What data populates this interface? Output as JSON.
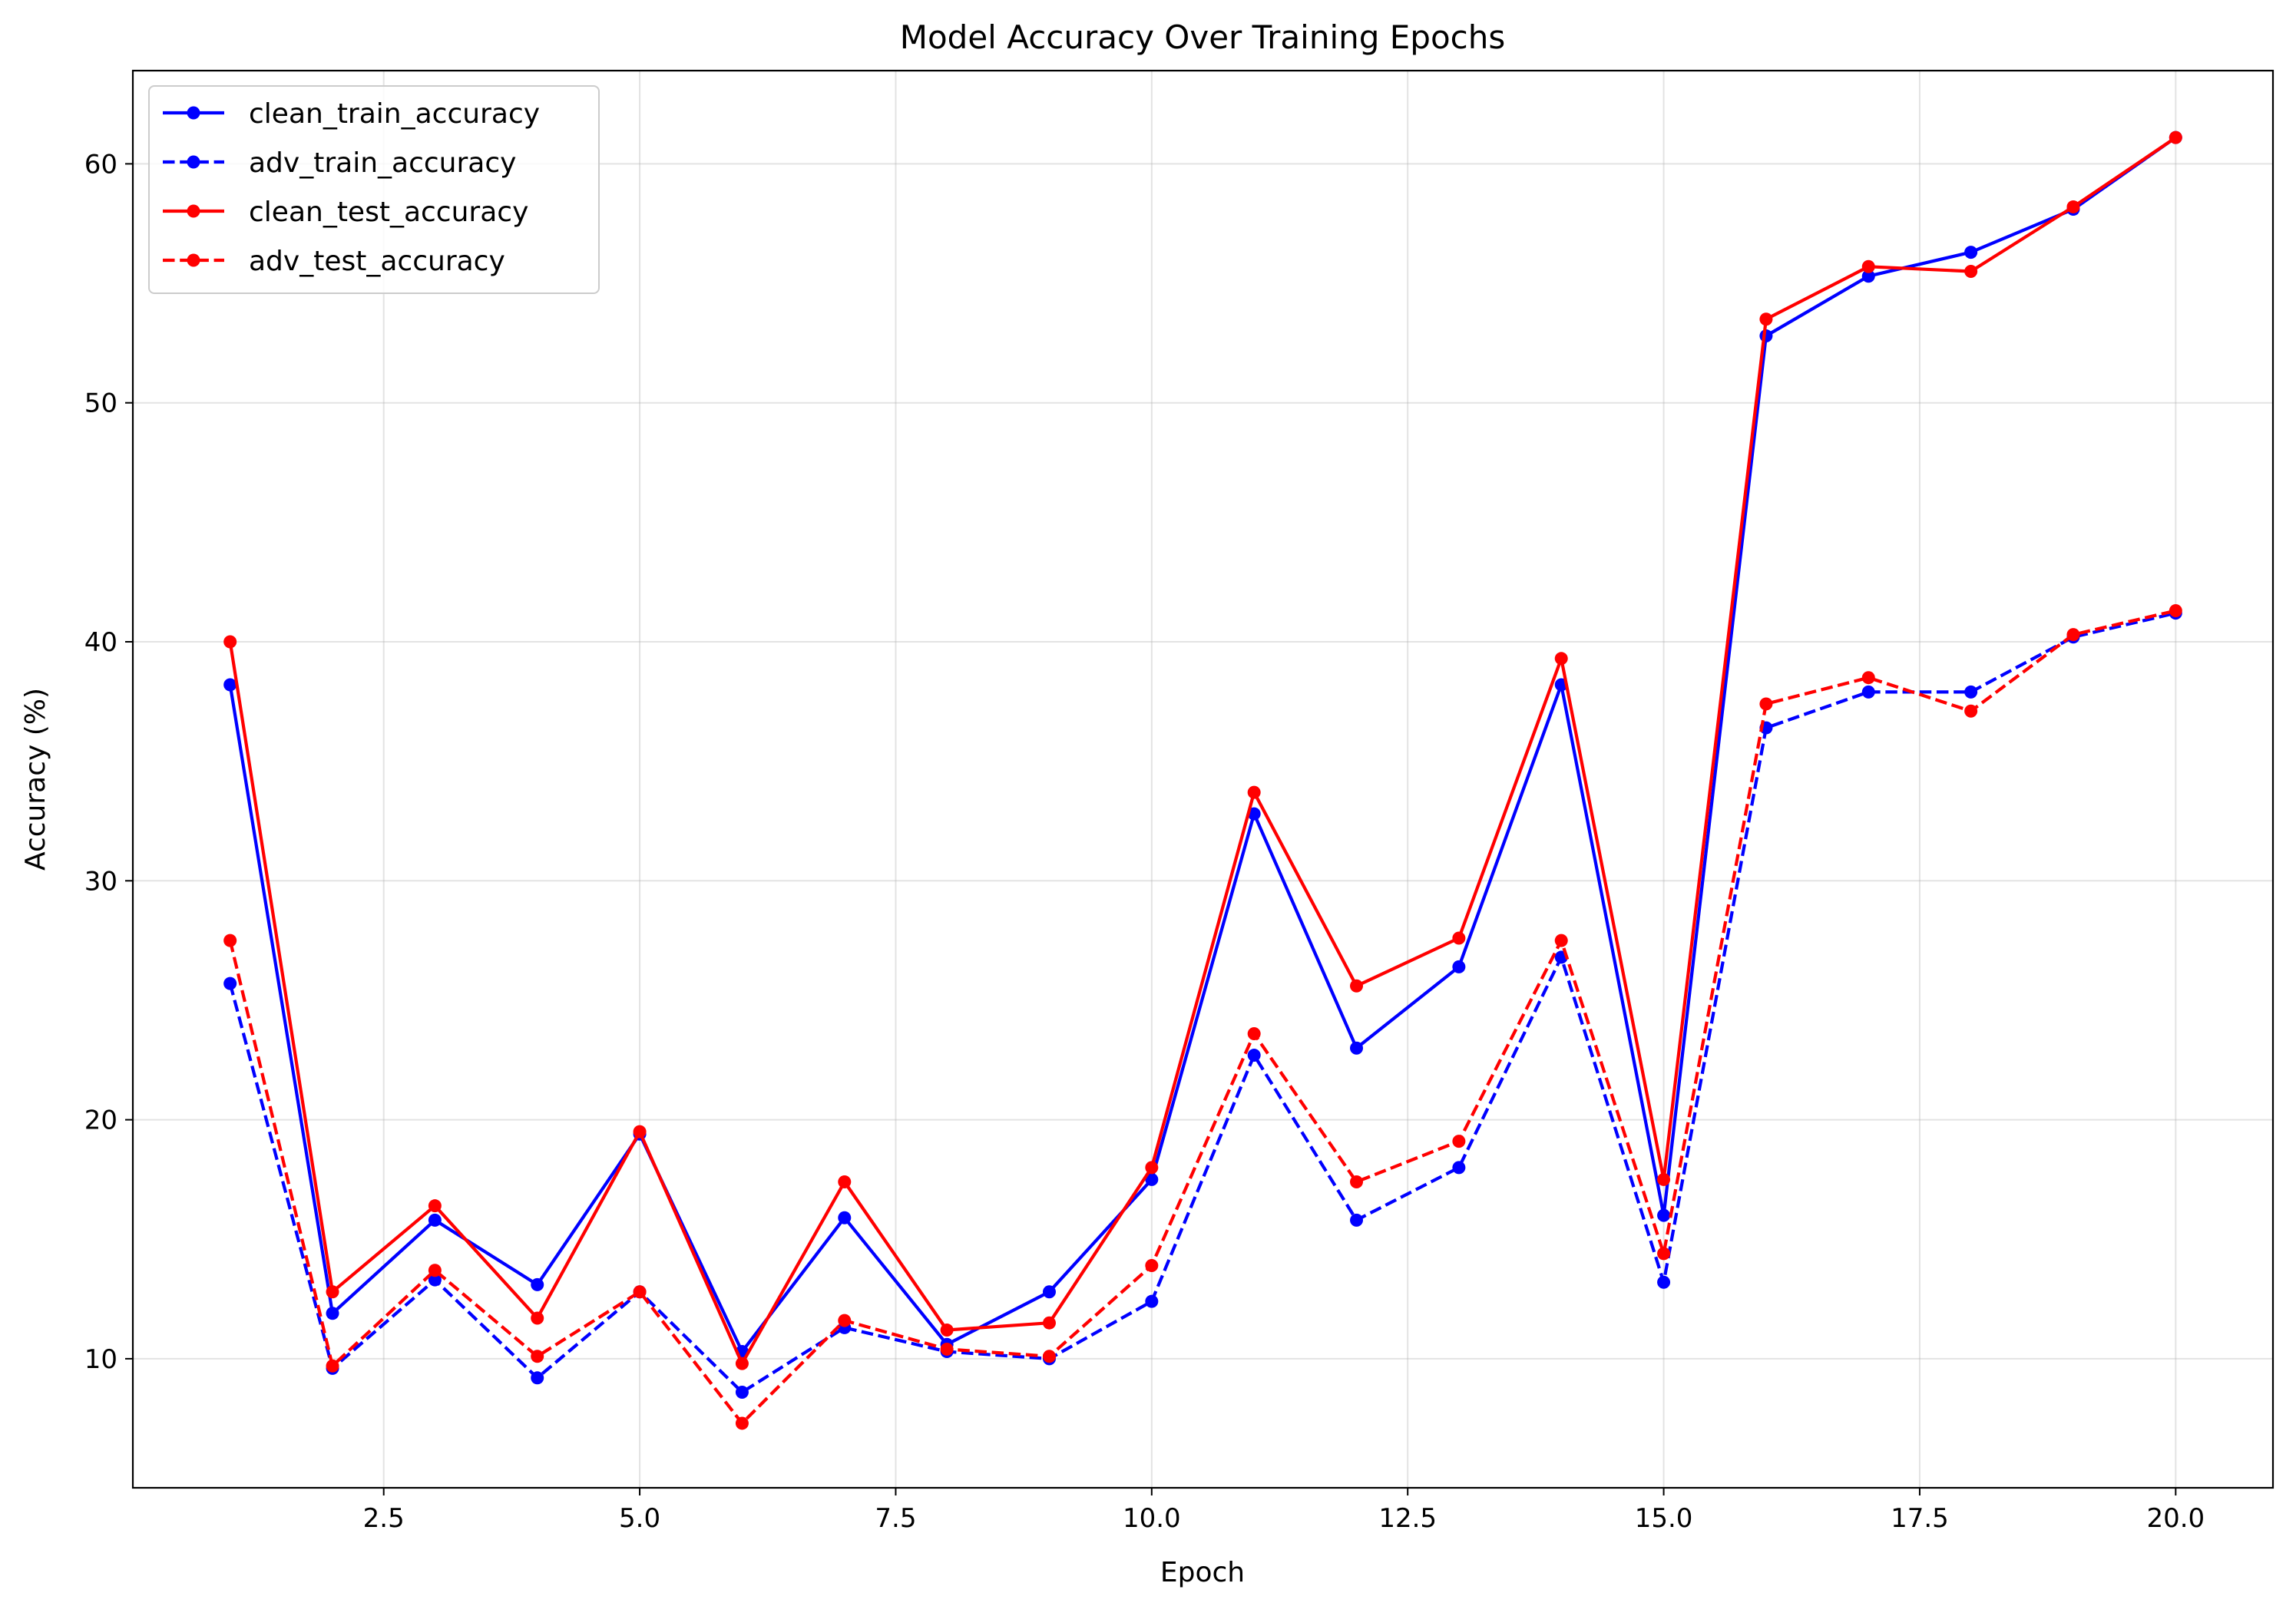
{
  "chart_data": {
    "type": "line",
    "title": "Model Accuracy Over Training Epochs",
    "xlabel": "Epoch",
    "ylabel": "Accuracy (%)",
    "xlim": [
      0.05,
      20.95
    ],
    "ylim": [
      4.6,
      63.9
    ],
    "xticks": [
      2.5,
      5.0,
      7.5,
      10.0,
      12.5,
      15.0,
      17.5,
      20.0
    ],
    "xtick_labels": [
      "2.5",
      "5.0",
      "7.5",
      "10.0",
      "12.5",
      "15.0",
      "17.5",
      "20.0"
    ],
    "yticks": [
      10,
      20,
      30,
      40,
      50,
      60
    ],
    "ytick_labels": [
      "10",
      "20",
      "30",
      "40",
      "50",
      "60"
    ],
    "grid": true,
    "legend_position": "top-left",
    "x": [
      1,
      2,
      3,
      4,
      5,
      6,
      7,
      8,
      9,
      10,
      11,
      12,
      13,
      14,
      15,
      16,
      17,
      18,
      19,
      20
    ],
    "series": [
      {
        "name": "clean_train_accuracy",
        "color": "#0000ff",
        "linestyle": "solid",
        "marker": "circle",
        "values": [
          38.2,
          11.9,
          15.8,
          13.1,
          19.4,
          10.3,
          15.9,
          10.6,
          12.8,
          17.5,
          32.8,
          23.0,
          26.4,
          38.2,
          16.0,
          52.8,
          55.3,
          56.3,
          58.1,
          61.1
        ]
      },
      {
        "name": "adv_train_accuracy",
        "color": "#0000ff",
        "linestyle": "dashed",
        "marker": "circle",
        "values": [
          25.7,
          9.6,
          13.3,
          9.2,
          12.8,
          8.6,
          11.3,
          10.3,
          10.0,
          12.4,
          22.7,
          15.8,
          18.0,
          26.8,
          13.2,
          36.4,
          37.9,
          37.9,
          40.2,
          41.2
        ]
      },
      {
        "name": "clean_test_accuracy",
        "color": "#ff0000",
        "linestyle": "solid",
        "marker": "circle",
        "values": [
          40.0,
          12.8,
          16.4,
          11.7,
          19.5,
          9.8,
          17.4,
          11.2,
          11.5,
          18.0,
          33.7,
          25.6,
          27.6,
          39.3,
          17.5,
          53.5,
          55.7,
          55.5,
          58.2,
          61.1
        ]
      },
      {
        "name": "adv_test_accuracy",
        "color": "#ff0000",
        "linestyle": "dashed",
        "marker": "circle",
        "values": [
          27.5,
          9.7,
          13.7,
          10.1,
          12.8,
          7.3,
          11.6,
          10.4,
          10.1,
          13.9,
          23.6,
          17.4,
          19.1,
          27.5,
          14.4,
          37.4,
          38.5,
          37.1,
          40.3,
          41.3
        ]
      }
    ]
  }
}
